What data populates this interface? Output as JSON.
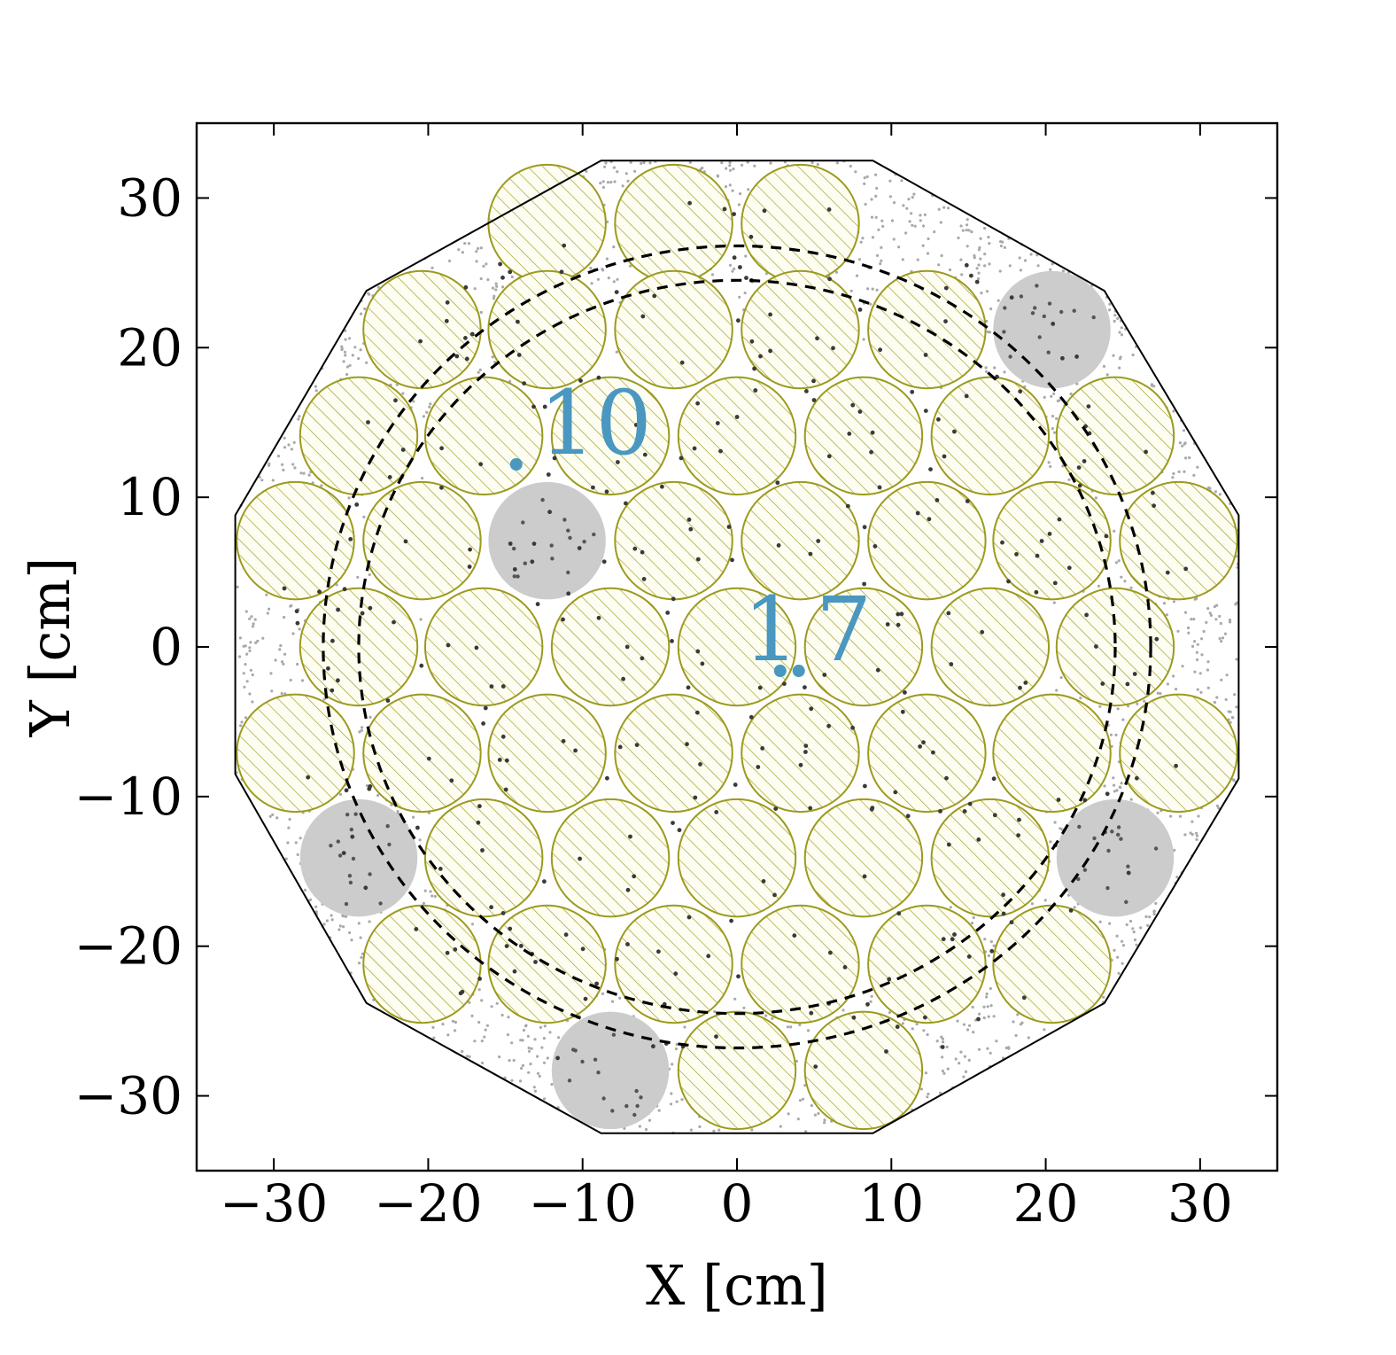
{
  "chart_data": {
    "type": "scatter",
    "xlabel": "X [cm]",
    "ylabel": "Y [cm]",
    "xlim": [
      -35,
      35
    ],
    "ylim": [
      -35,
      35
    ],
    "xticks": [
      "−30",
      "−20",
      "−10",
      "0",
      "10",
      "20",
      "30"
    ],
    "yticks": [
      "30",
      "20",
      "10",
      "0",
      "−10",
      "−20",
      "−30"
    ],
    "xtick_values": [
      -30,
      -20,
      -10,
      0,
      10,
      20,
      30
    ],
    "ytick_values": [
      30,
      20,
      10,
      0,
      -10,
      -20,
      -30
    ],
    "grid": false,
    "pmt_radius": 3.8,
    "pmts_active": [
      [
        -12.3,
        28.3
      ],
      [
        -4.1,
        28.3
      ],
      [
        4.1,
        28.3
      ],
      [
        -20.4,
        21.2
      ],
      [
        -12.3,
        21.2
      ],
      [
        -4.1,
        21.2
      ],
      [
        4.1,
        21.2
      ],
      [
        12.3,
        21.2
      ],
      [
        -24.5,
        14.1
      ],
      [
        -16.4,
        14.1
      ],
      [
        -8.2,
        14.1
      ],
      [
        0.0,
        14.1
      ],
      [
        8.2,
        14.1
      ],
      [
        16.4,
        14.1
      ],
      [
        24.5,
        14.1
      ],
      [
        -28.6,
        7.1
      ],
      [
        -20.4,
        7.1
      ],
      [
        -4.1,
        7.1
      ],
      [
        4.1,
        7.1
      ],
      [
        12.3,
        7.1
      ],
      [
        20.4,
        7.1
      ],
      [
        28.6,
        7.1
      ],
      [
        -24.5,
        0.0
      ],
      [
        -16.4,
        0.0
      ],
      [
        -8.2,
        0.0
      ],
      [
        0.0,
        0.0
      ],
      [
        8.2,
        0.0
      ],
      [
        16.4,
        0.0
      ],
      [
        24.5,
        0.0
      ],
      [
        -28.6,
        -7.1
      ],
      [
        -20.4,
        -7.1
      ],
      [
        -12.3,
        -7.1
      ],
      [
        -4.1,
        -7.1
      ],
      [
        4.1,
        -7.1
      ],
      [
        12.3,
        -7.1
      ],
      [
        20.4,
        -7.1
      ],
      [
        28.6,
        -7.1
      ],
      [
        -16.4,
        -14.1
      ],
      [
        -8.2,
        -14.1
      ],
      [
        0.0,
        -14.1
      ],
      [
        8.2,
        -14.1
      ],
      [
        16.4,
        -14.1
      ],
      [
        -20.4,
        -21.2
      ],
      [
        -12.3,
        -21.2
      ],
      [
        -4.1,
        -21.2
      ],
      [
        4.1,
        -21.2
      ],
      [
        12.3,
        -21.2
      ],
      [
        20.4,
        -21.2
      ],
      [
        0.0,
        -28.3
      ],
      [
        8.2,
        -28.3
      ]
    ],
    "pmts_inactive": [
      [
        20.4,
        21.2
      ],
      [
        -12.3,
        7.1
      ],
      [
        -24.5,
        -14.1
      ],
      [
        24.5,
        -14.1
      ],
      [
        -8.2,
        -28.3
      ]
    ],
    "dashed_circles": [
      {
        "cx": 0,
        "cy": 0,
        "r": 26.8
      },
      {
        "cx": 0,
        "cy": 0,
        "r": 24.5
      }
    ],
    "boundary_polygon": [
      [
        -8.8,
        32.5
      ],
      [
        8.8,
        32.5
      ],
      [
        23.8,
        23.8
      ],
      [
        32.5,
        8.8
      ],
      [
        32.5,
        -8.8
      ],
      [
        23.8,
        -23.8
      ],
      [
        8.8,
        -32.5
      ],
      [
        -8.8,
        -32.5
      ],
      [
        -24.0,
        -23.8
      ],
      [
        -32.5,
        -8.5
      ],
      [
        -32.5,
        8.8
      ],
      [
        -24.0,
        23.8
      ]
    ],
    "annotations": [
      {
        "text": ".10",
        "x": -14.3,
        "y": 12.2
      },
      {
        "text": "1.7",
        "x": 2.8,
        "y": -1.6
      },
      {
        "text": ".",
        "x": 4.0,
        "y": -1.6
      }
    ]
  }
}
